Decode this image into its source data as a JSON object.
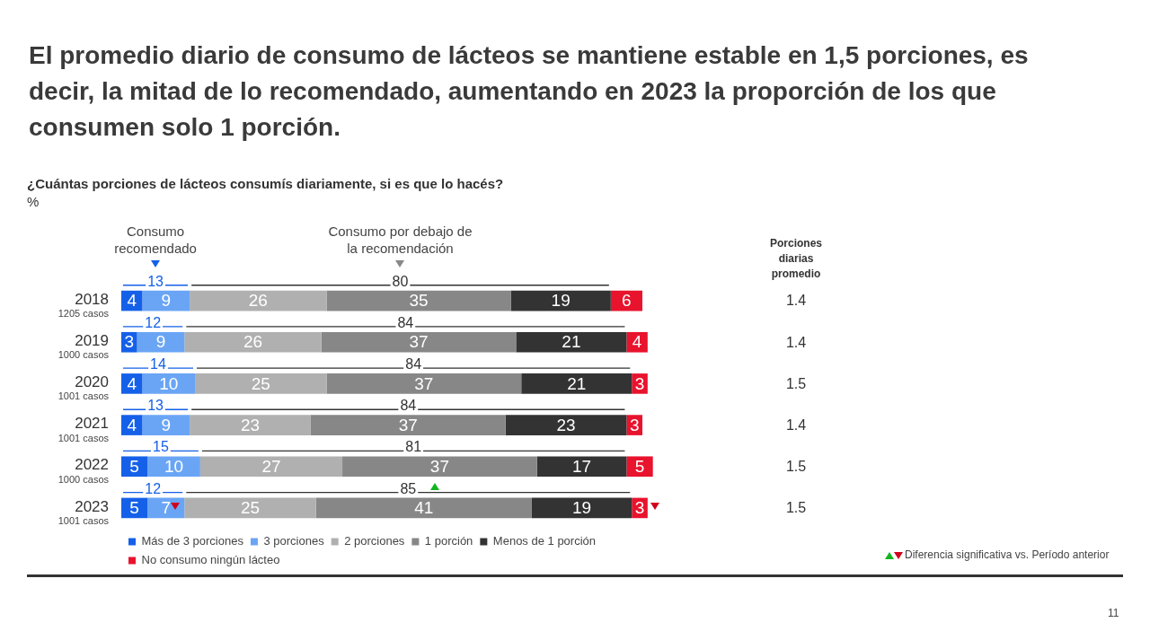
{
  "chart_data": {
    "type": "bar",
    "orientation": "horizontal",
    "stacked": true,
    "data_labels": true,
    "legend": "bottom",
    "title": "El promedio diario de consumo de lácteos se mantiene estable en 1,5 porciones, es decir, la mitad de lo recomendado, aumentando en 2023 la proporción de los que consumen solo 1 porción.",
    "subtitle": "¿Cuántas porciones de lácteos consumís diariamente, si es que lo hacés?",
    "categories": [
      "2018\n1205 casos",
      "2019\n1000 casos",
      "2020\n1001 casos",
      "2021\n1001 casos",
      "2022\n1000 casos",
      "2023\n1001 casos"
    ],
    "series": [
      {
        "name": "Más de 3 porciones",
        "color": "#1560e8",
        "values": [
          4,
          3,
          4,
          4,
          5,
          5
        ]
      },
      {
        "name": "3 porciones",
        "color": "#6aa5f5",
        "values": [
          9,
          9,
          10,
          9,
          10,
          7
        ]
      },
      {
        "name": "2 porciones",
        "color": "#b0b0b0",
        "values": [
          26,
          26,
          25,
          23,
          27,
          25
        ]
      },
      {
        "name": "1 porción",
        "color": "#878787",
        "values": [
          35,
          37,
          37,
          37,
          37,
          41
        ]
      },
      {
        "name": "Menos de 1 porción",
        "color": "#333333",
        "values": [
          19,
          21,
          21,
          23,
          17,
          19
        ]
      },
      {
        "name": "No consumo ningún lácteo",
        "color": "#e8132d",
        "values": [
          6,
          4,
          3,
          3,
          5,
          3
        ]
      }
    ],
    "annotations": [
      "Consumo\nrecomendado",
      "Consumo por debajo de\nla recomendación",
      "Porciones\ndiarias\npromedio",
      "13",
      "80",
      "1.4",
      "12",
      "84",
      "1.4",
      "14",
      "84",
      "1.5",
      "13",
      "84",
      "1.4",
      "15",
      "81",
      "1.5",
      "12",
      "85",
      "1.5",
      "Diferencia significativa vs. Período anterior",
      "11",
      "%"
    ]
  }
}
